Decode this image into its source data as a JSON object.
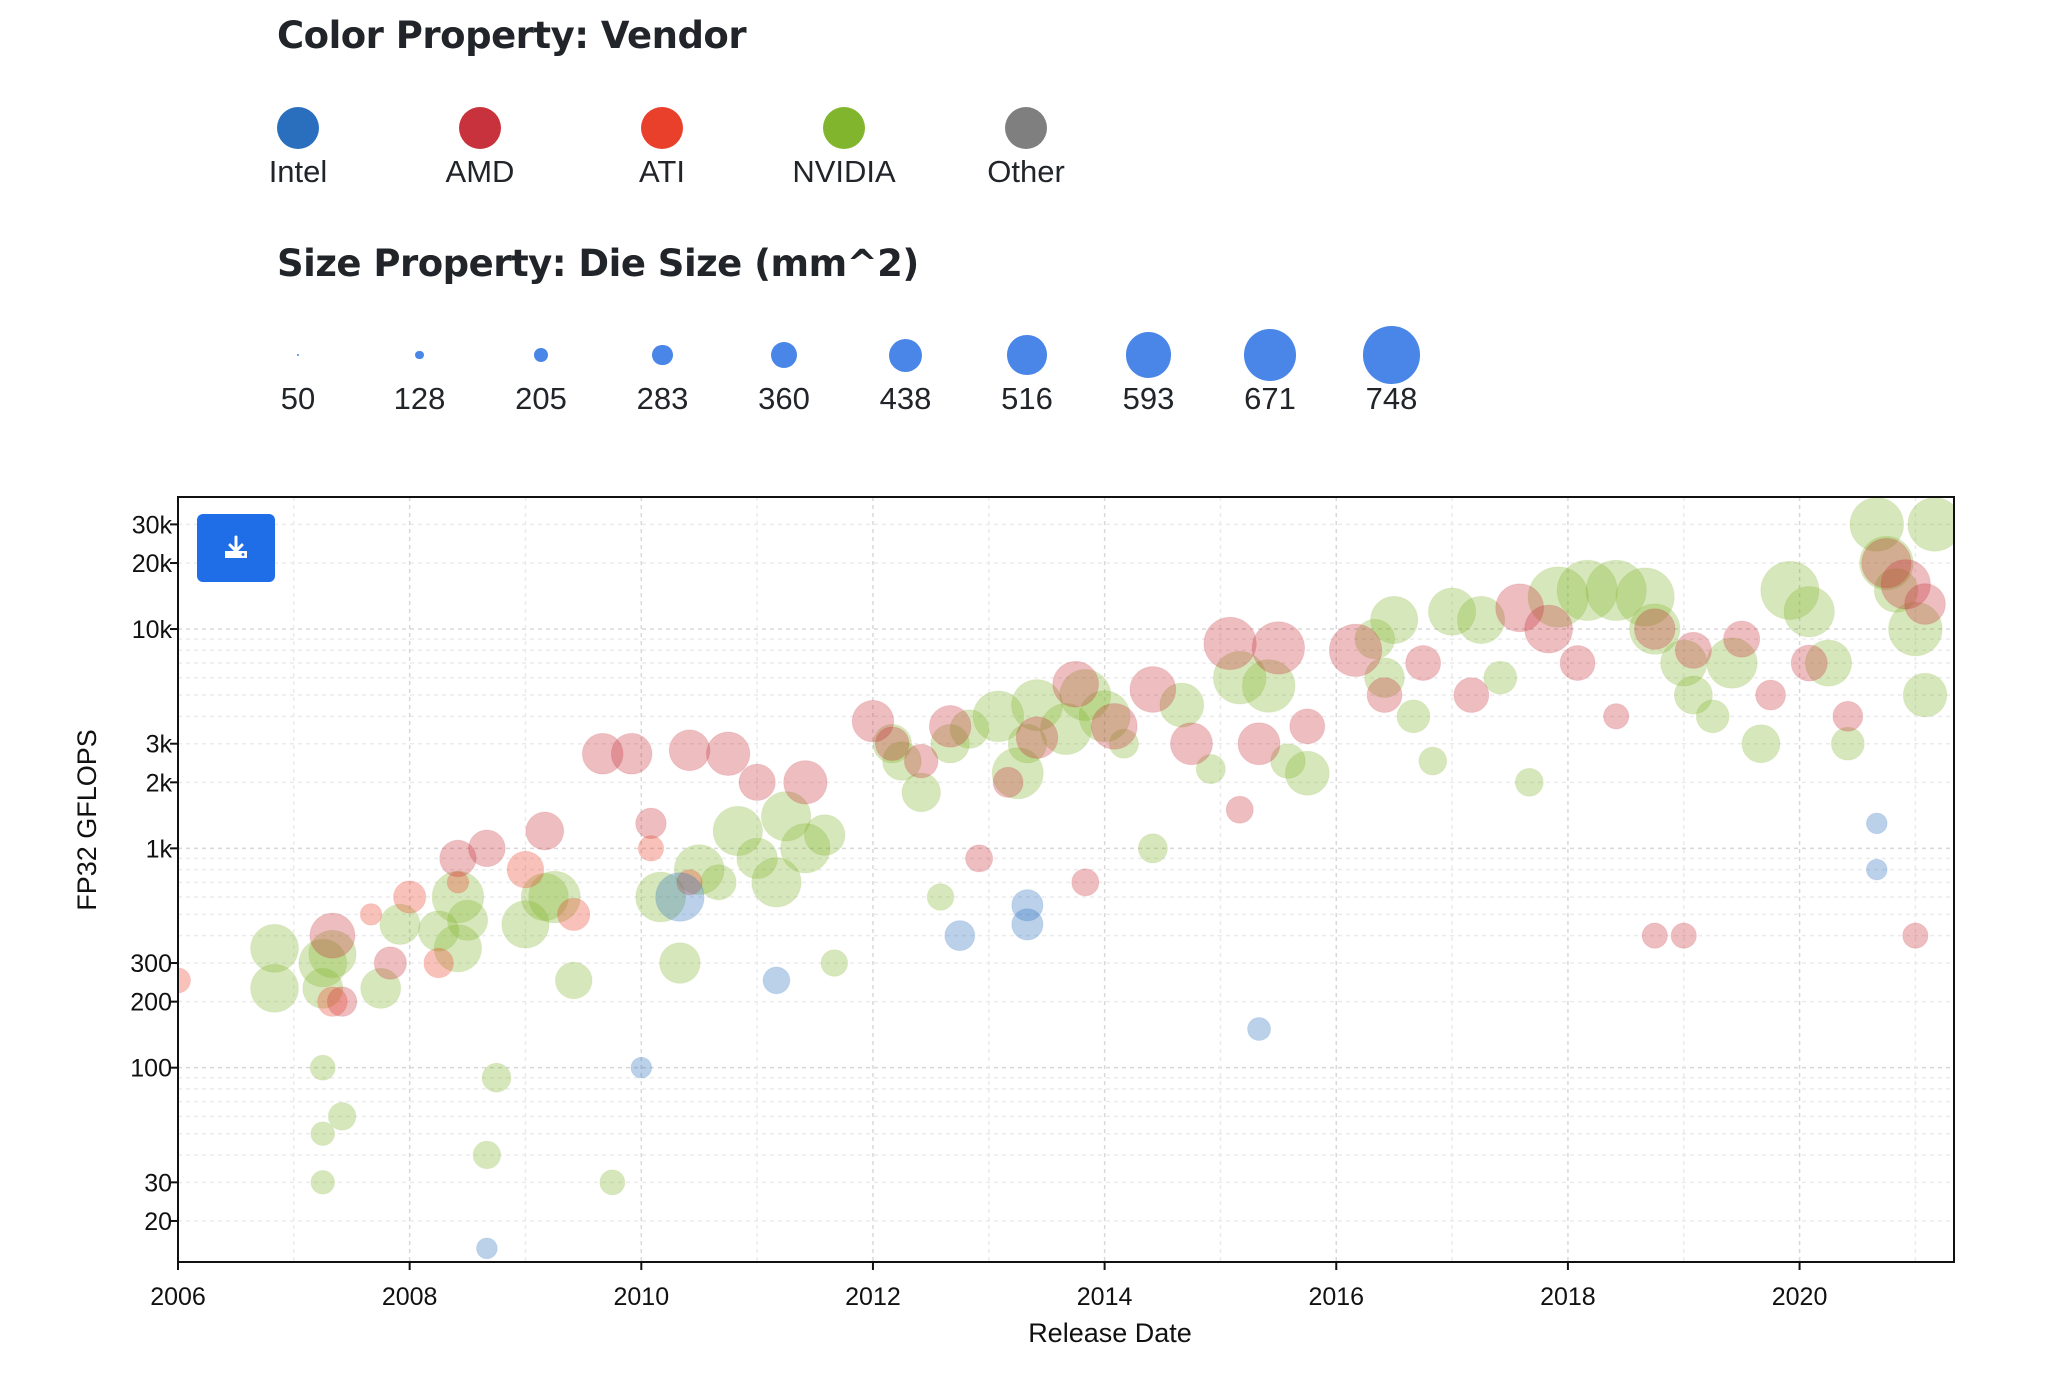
{
  "legend": {
    "color_title": "Color Property: Vendor",
    "size_title": "Size Property: Die Size (mm^2)",
    "vendors": [
      {
        "label": "Intel",
        "color": "#2a6fbd"
      },
      {
        "label": "AMD",
        "color": "#c8323c"
      },
      {
        "label": "ATI",
        "color": "#e8402a"
      },
      {
        "label": "NVIDIA",
        "color": "#82b52e"
      },
      {
        "label": "Other",
        "color": "#7f7f7f"
      }
    ],
    "sizes": [
      "50",
      "128",
      "205",
      "283",
      "360",
      "438",
      "516",
      "593",
      "671",
      "748"
    ],
    "size_color": "#4a86e8"
  },
  "toolbar": {
    "download_icon": "download-icon"
  },
  "chart_data": {
    "type": "scatter",
    "xlabel": "Release Date",
    "ylabel": "FP32 GFLOPS",
    "x_ticks": [
      "2006",
      "2008",
      "2010",
      "2012",
      "2014",
      "2016",
      "2018",
      "2020"
    ],
    "y_ticks": [
      "20",
      "30",
      "100",
      "200",
      "300",
      "1k",
      "2k",
      "3k",
      "10k",
      "20k",
      "30k"
    ],
    "xlim": [
      "2006-01-01",
      "2021-05-01"
    ],
    "ylim": [
      13,
      40000
    ],
    "y_scale": "log",
    "size_encoding": "Die Size (mm^2)",
    "color_encoding": "Vendor",
    "series": [
      {
        "name": "NVIDIA",
        "color": "#82b52e",
        "points": [
          [
            "2006-11",
            350,
            484
          ],
          [
            "2006-11",
            230,
            484
          ],
          [
            "2007-04",
            300,
            480
          ],
          [
            "2007-04",
            230,
            320
          ],
          [
            "2007-05",
            330,
            470
          ],
          [
            "2007-04",
            100,
            100
          ],
          [
            "2007-04",
            50,
            86
          ],
          [
            "2007-04",
            30,
            86
          ],
          [
            "2007-06",
            60,
            129
          ],
          [
            "2007-10",
            230,
            320
          ],
          [
            "2007-12",
            450,
            324
          ],
          [
            "2008-04",
            420,
            324
          ],
          [
            "2008-06",
            600,
            576
          ],
          [
            "2008-06",
            350,
            470
          ],
          [
            "2008-07",
            470,
            324
          ],
          [
            "2008-09",
            40,
            129
          ],
          [
            "2008-10",
            90,
            144
          ],
          [
            "2009-01",
            450,
            470
          ],
          [
            "2009-03",
            600,
            470
          ],
          [
            "2009-04",
            600,
            576
          ],
          [
            "2009-06",
            250,
            260
          ],
          [
            "2009-10",
            30,
            100
          ],
          [
            "2010-03",
            600,
            529
          ],
          [
            "2010-05",
            300,
            332
          ],
          [
            "2010-07",
            800,
            529
          ],
          [
            "2010-09",
            700,
            238
          ],
          [
            "2010-11",
            1200,
            520
          ],
          [
            "2011-01",
            900,
            332
          ],
          [
            "2011-03",
            700,
            520
          ],
          [
            "2011-04",
            1400,
            520
          ],
          [
            "2011-06",
            1000,
            520
          ],
          [
            "2011-08",
            1150,
            332
          ],
          [
            "2011-09",
            300,
            118
          ],
          [
            "2012-03",
            3000,
            294
          ],
          [
            "2012-04",
            2500,
            294
          ],
          [
            "2012-06",
            1800,
            294
          ],
          [
            "2012-08",
            600,
            118
          ],
          [
            "2012-09",
            3000,
            294
          ],
          [
            "2012-11",
            3500,
            294
          ],
          [
            "2013-02",
            4000,
            551
          ],
          [
            "2013-04",
            2200,
            561
          ],
          [
            "2013-05",
            3000,
            294
          ],
          [
            "2013-06",
            4500,
            561
          ],
          [
            "2013-09",
            3500,
            561
          ],
          [
            "2013-11",
            5000,
            561
          ],
          [
            "2014-01",
            4000,
            561
          ],
          [
            "2014-03",
            3000,
            148
          ],
          [
            "2014-06",
            1000,
            148
          ],
          [
            "2014-09",
            4500,
            398
          ],
          [
            "2014-12",
            2300,
            148
          ],
          [
            "2015-03",
            6000,
            601
          ],
          [
            "2015-06",
            5500,
            601
          ],
          [
            "2015-08",
            2500,
            227
          ],
          [
            "2015-10",
            2200,
            398
          ],
          [
            "2016-05",
            9000,
            314
          ],
          [
            "2016-06",
            6000,
            314
          ],
          [
            "2016-07",
            11000,
            471
          ],
          [
            "2016-09",
            4000,
            200
          ],
          [
            "2016-11",
            2500,
            132
          ],
          [
            "2017-01",
            12000,
            471
          ],
          [
            "2017-04",
            11000,
            471
          ],
          [
            "2017-06",
            6000,
            200
          ],
          [
            "2017-09",
            2000,
            132
          ],
          [
            "2017-12",
            14000,
            815
          ],
          [
            "2018-03",
            15000,
            815
          ],
          [
            "2018-06",
            15000,
            815
          ],
          [
            "2018-09",
            14000,
            754
          ],
          [
            "2018-10",
            10000,
            545
          ],
          [
            "2019-01",
            7000,
            445
          ],
          [
            "2019-02",
            5000,
            284
          ],
          [
            "2019-04",
            4000,
            200
          ],
          [
            "2019-06",
            7000,
            545
          ],
          [
            "2019-09",
            3000,
            284
          ],
          [
            "2019-12",
            15000,
            754
          ],
          [
            "2020-02",
            12000,
            545
          ],
          [
            "2020-04",
            7000,
            445
          ],
          [
            "2020-06",
            3000,
            200
          ],
          [
            "2020-09",
            30000,
            628
          ],
          [
            "2020-10",
            20000,
            628
          ],
          [
            "2020-11",
            15000,
            392
          ],
          [
            "2021-01",
            10000,
            628
          ],
          [
            "2021-03",
            30000,
            628
          ],
          [
            "2021-02",
            5000,
            392
          ]
        ]
      },
      {
        "name": "AMD",
        "color": "#c8323c",
        "points": [
          [
            "2007-05",
            400,
            420
          ],
          [
            "2007-06",
            200,
            153
          ],
          [
            "2007-11",
            300,
            192
          ],
          [
            "2008-06",
            900,
            256
          ],
          [
            "2008-09",
            1000,
            260
          ],
          [
            "2009-03",
            1200,
            282
          ],
          [
            "2009-09",
            2700,
            334
          ],
          [
            "2009-12",
            2700,
            334
          ],
          [
            "2010-02",
            1300,
            166
          ],
          [
            "2010-06",
            2800,
            334
          ],
          [
            "2010-10",
            2700,
            389
          ],
          [
            "2011-01",
            2000,
            255
          ],
          [
            "2011-06",
            2000,
            389
          ],
          [
            "2012-01",
            3800,
            352
          ],
          [
            "2012-03",
            3000,
            212
          ],
          [
            "2012-06",
            2500,
            212
          ],
          [
            "2012-09",
            3600,
            352
          ],
          [
            "2012-12",
            900,
            123
          ],
          [
            "2013-03",
            2000,
            160
          ],
          [
            "2013-06",
            3200,
            352
          ],
          [
            "2013-10",
            5600,
            438
          ],
          [
            "2014-02",
            3600,
            438
          ],
          [
            "2014-06",
            5300,
            438
          ],
          [
            "2014-10",
            3000,
            359
          ],
          [
            "2015-02",
            8600,
            596
          ],
          [
            "2015-05",
            3000,
            359
          ],
          [
            "2015-07",
            8200,
            596
          ],
          [
            "2015-10",
            3600,
            232
          ],
          [
            "2016-03",
            8000,
            596
          ],
          [
            "2016-06",
            5000,
            232
          ],
          [
            "2016-10",
            7000,
            232
          ],
          [
            "2017-03",
            5000,
            232
          ],
          [
            "2017-08",
            12500,
            486
          ],
          [
            "2017-11",
            10000,
            486
          ],
          [
            "2018-02",
            7000,
            232
          ],
          [
            "2018-06",
            4000,
            103
          ],
          [
            "2018-10",
            10000,
            331
          ],
          [
            "2019-02",
            8000,
            251
          ],
          [
            "2019-07",
            9000,
            251
          ],
          [
            "2019-10",
            5000,
            158
          ],
          [
            "2020-02",
            7000,
            251
          ],
          [
            "2020-06",
            4000,
            158
          ],
          [
            "2020-10",
            20000,
            520
          ],
          [
            "2020-12",
            16000,
            520
          ],
          [
            "2021-02",
            13000,
            335
          ],
          [
            "2021-01",
            400,
            103
          ],
          [
            "2018-10",
            400,
            103
          ],
          [
            "2019-01",
            400,
            103
          ],
          [
            "2015-03",
            1500,
            123
          ],
          [
            "2013-11",
            700,
            123
          ]
        ]
      },
      {
        "name": "ATI",
        "color": "#e8402a",
        "points": [
          [
            "2006-01",
            250,
            100
          ],
          [
            "2007-05",
            200,
            153
          ],
          [
            "2007-09",
            500,
            67
          ],
          [
            "2008-01",
            600,
            192
          ],
          [
            "2008-04",
            300,
            153
          ],
          [
            "2008-06",
            700,
            67
          ],
          [
            "2009-01",
            800,
            260
          ],
          [
            "2009-06",
            500,
            192
          ],
          [
            "2010-02",
            1000,
            104
          ],
          [
            "2010-06",
            700,
            104
          ]
        ]
      },
      {
        "name": "Intel",
        "color": "#2a6fbd",
        "points": [
          [
            "2010-05",
            600,
            500
          ],
          [
            "2012-10",
            400,
            160
          ],
          [
            "2013-05",
            550,
            177
          ],
          [
            "2013-05",
            450,
            177
          ],
          [
            "2011-03",
            250,
            120
          ],
          [
            "2015-05",
            150,
            80
          ],
          [
            "2020-09",
            1300,
            60
          ],
          [
            "2020-09",
            800,
            60
          ],
          [
            "2008-09",
            15,
            60
          ],
          [
            "2010-01",
            100,
            60
          ]
        ]
      }
    ]
  }
}
